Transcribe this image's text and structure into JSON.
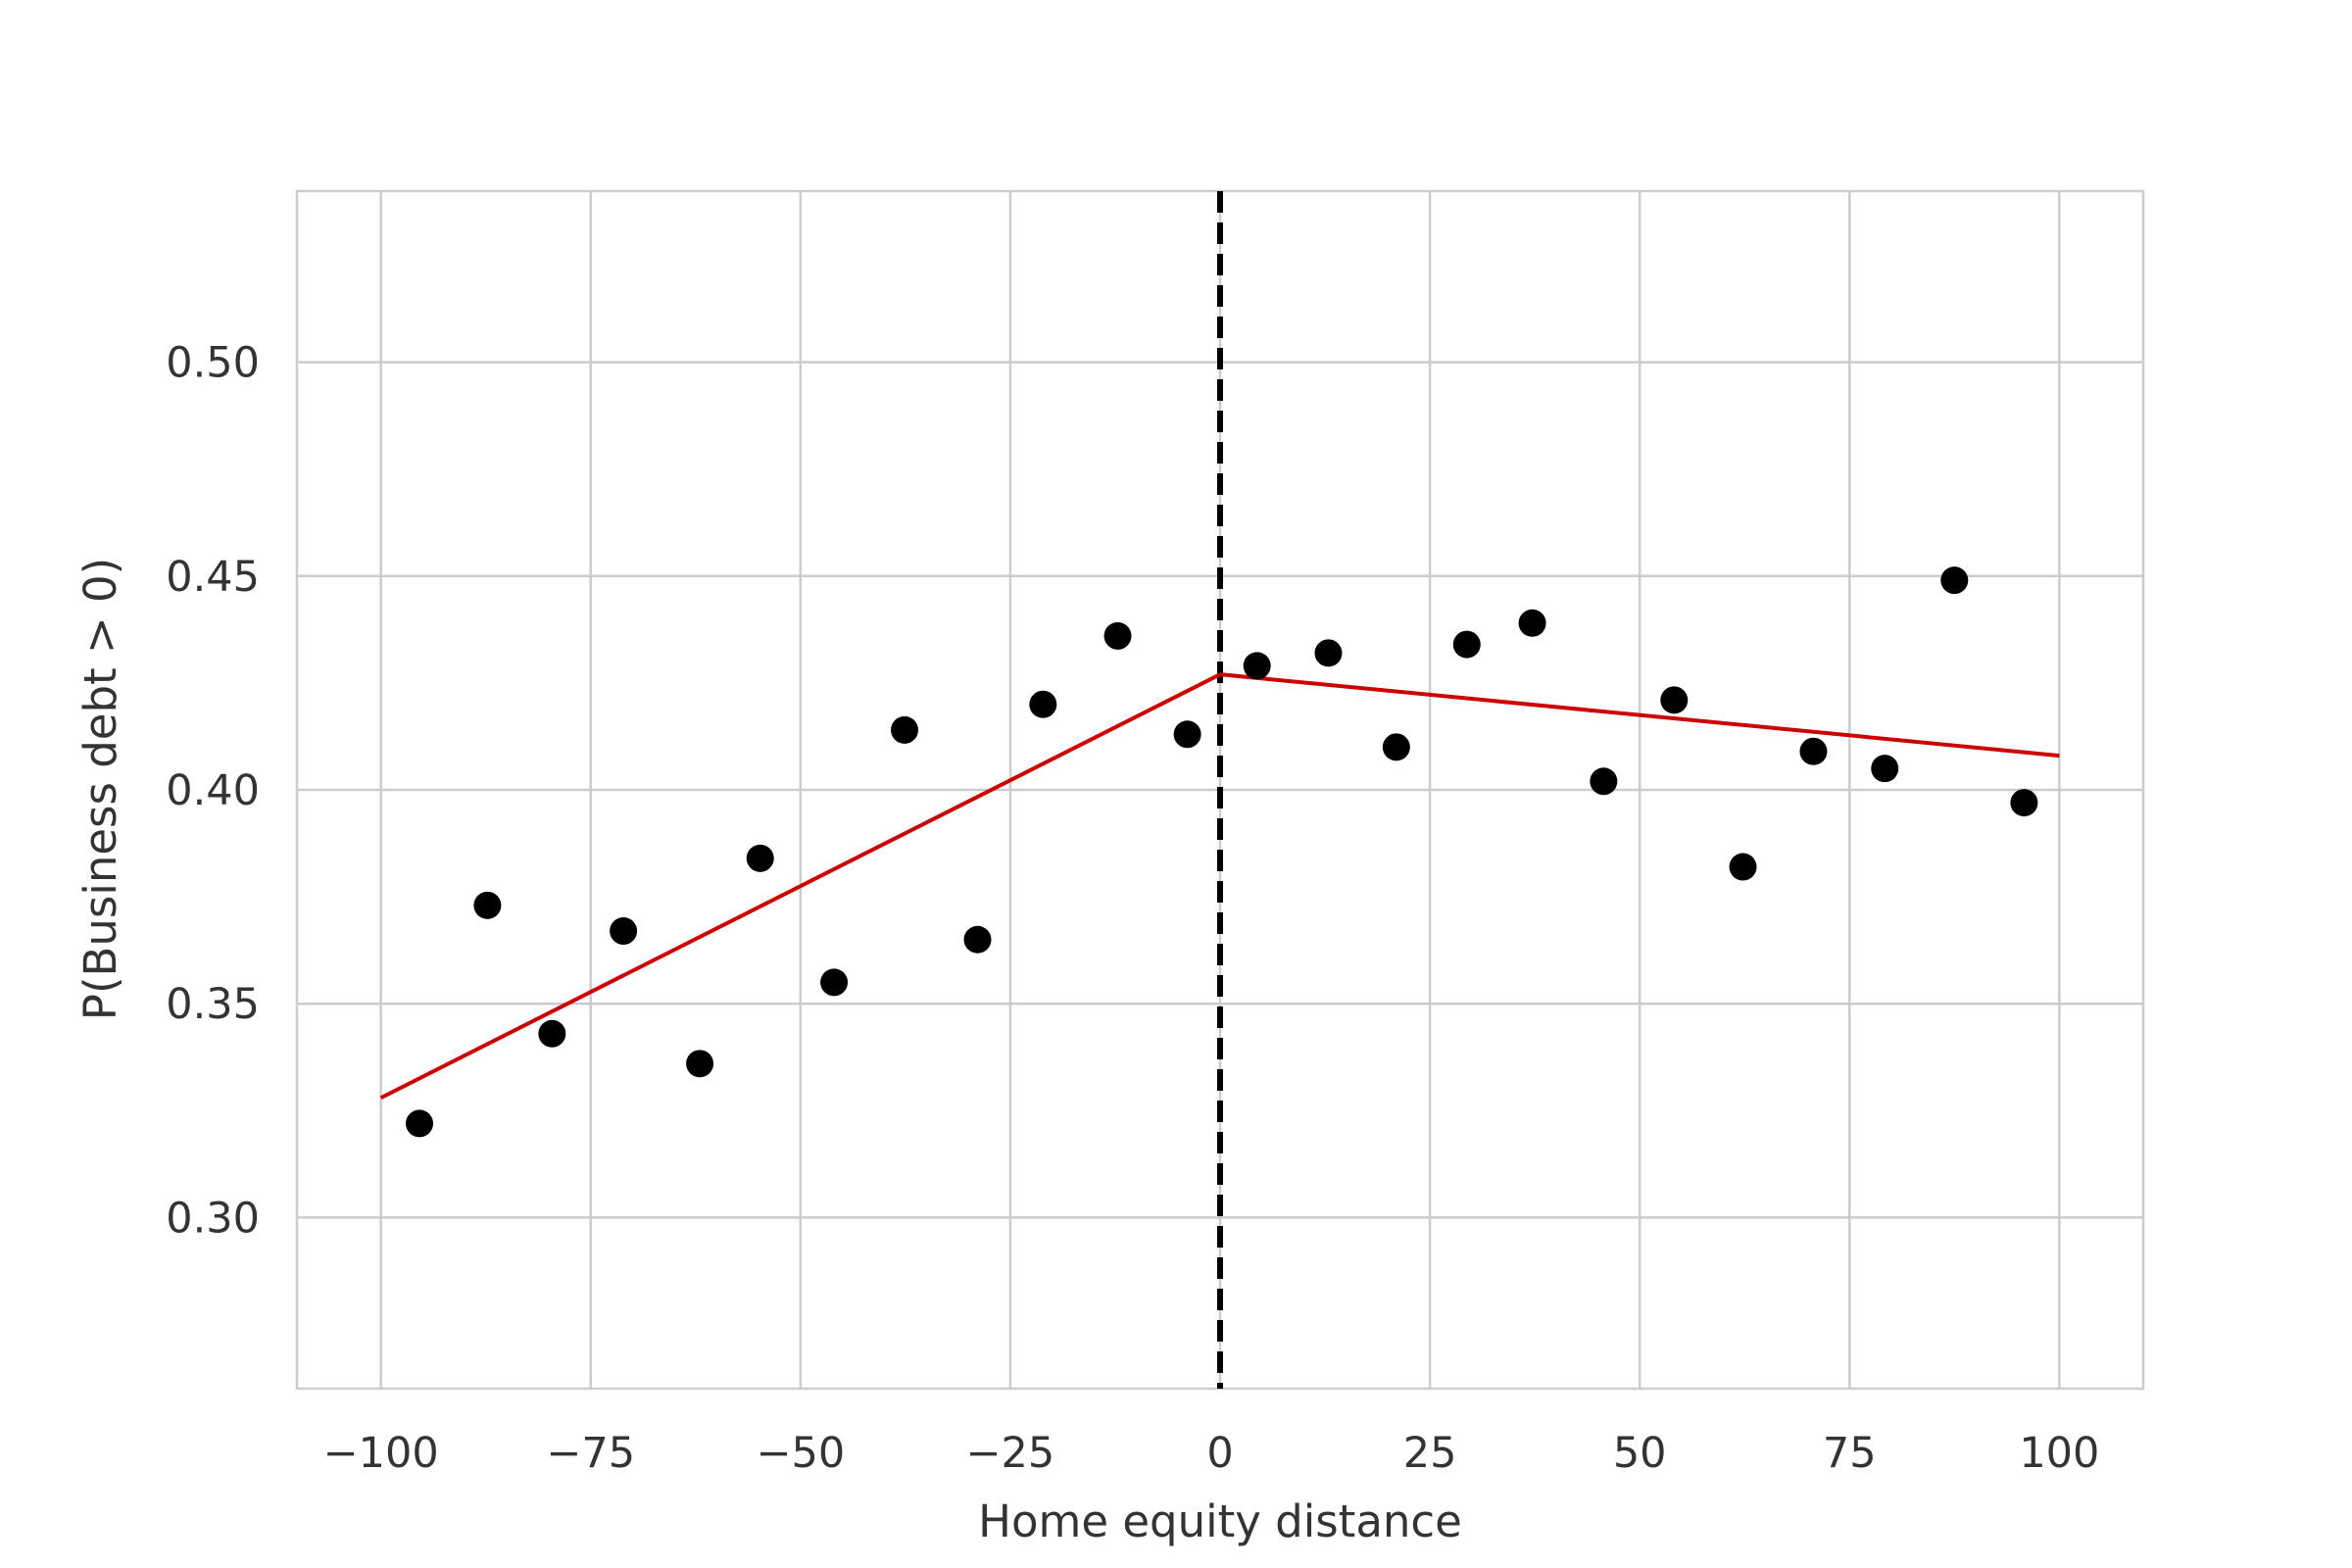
{
  "chart_data": {
    "type": "scatter",
    "title": "",
    "xlabel": "Home equity distance",
    "ylabel": "P(Business debt > 0)",
    "xlim": [
      -110,
      110
    ],
    "ylim": [
      0.26,
      0.54
    ],
    "xticks": [
      -100,
      -75,
      -50,
      -25,
      0,
      25,
      50,
      75,
      100
    ],
    "xtick_labels": [
      "−100",
      "−75",
      "−50",
      "−25",
      "0",
      "25",
      "50",
      "75",
      "100"
    ],
    "yticks": [
      0.3,
      0.35,
      0.4,
      0.45,
      0.5
    ],
    "ytick_labels": [
      "0.30",
      "0.35",
      "0.40",
      "0.45",
      "0.50"
    ],
    "grid": true,
    "cutoff": {
      "x": 0,
      "style": "dashed",
      "color": "#000000"
    },
    "series": [
      {
        "type": "scatter",
        "color": "#000000",
        "points": [
          [
            -95.4,
            0.322
          ],
          [
            -87.3,
            0.373
          ],
          [
            -79.6,
            0.343
          ],
          [
            -71.1,
            0.367
          ],
          [
            -62.0,
            0.336
          ],
          [
            -54.8,
            0.384
          ],
          [
            -46.0,
            0.355
          ],
          [
            -37.6,
            0.414
          ],
          [
            -28.9,
            0.365
          ],
          [
            -21.1,
            0.42
          ],
          [
            -12.2,
            0.436
          ],
          [
            -3.9,
            0.413
          ],
          [
            4.4,
            0.429
          ],
          [
            12.9,
            0.432
          ],
          [
            21.0,
            0.41
          ],
          [
            29.4,
            0.434
          ],
          [
            37.2,
            0.439
          ],
          [
            45.7,
            0.402
          ],
          [
            54.1,
            0.421
          ],
          [
            62.3,
            0.382
          ],
          [
            70.7,
            0.409
          ],
          [
            79.2,
            0.405
          ],
          [
            87.5,
            0.449
          ],
          [
            95.8,
            0.397
          ]
        ]
      },
      {
        "type": "line",
        "color": "#cc0000",
        "segments": [
          [
            [
              -100,
              0.328
            ],
            [
              0,
              0.427
            ]
          ],
          [
            [
              0,
              0.427
            ],
            [
              100,
              0.408
            ]
          ]
        ]
      }
    ]
  }
}
